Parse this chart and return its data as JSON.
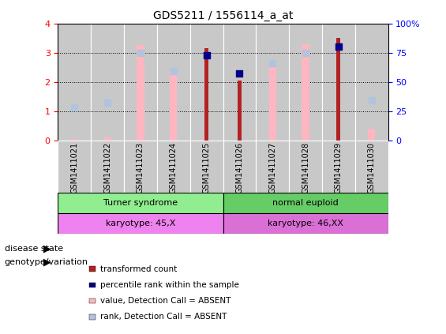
{
  "title": "GDS5211 / 1556114_a_at",
  "samples": [
    "GSM1411021",
    "GSM1411022",
    "GSM1411023",
    "GSM1411024",
    "GSM1411025",
    "GSM1411026",
    "GSM1411027",
    "GSM1411028",
    "GSM1411029",
    "GSM1411030"
  ],
  "transformed_count": [
    null,
    null,
    null,
    null,
    3.15,
    2.05,
    null,
    null,
    3.5,
    null
  ],
  "percentile_rank": [
    null,
    null,
    null,
    null,
    2.9,
    2.28,
    null,
    null,
    3.2,
    null
  ],
  "value_absent": [
    0.05,
    0.1,
    3.25,
    2.35,
    null,
    null,
    2.65,
    3.3,
    null,
    0.4
  ],
  "rank_absent": [
    1.12,
    1.28,
    3.0,
    2.38,
    null,
    null,
    2.65,
    3.0,
    null,
    1.38
  ],
  "ylim": [
    0,
    4
  ],
  "yticks": [
    0,
    1,
    2,
    3,
    4
  ],
  "y2ticks": [
    0,
    25,
    50,
    75,
    100
  ],
  "disease_state_groups": [
    {
      "label": "Turner syndrome",
      "start": 0,
      "end": 5,
      "color": "#90ee90"
    },
    {
      "label": "normal euploid",
      "start": 5,
      "end": 10,
      "color": "#66cc66"
    }
  ],
  "genotype_groups": [
    {
      "label": "karyotype: 45,X",
      "start": 0,
      "end": 5,
      "color": "#ee82ee"
    },
    {
      "label": "karyotype: 46,XX",
      "start": 5,
      "end": 10,
      "color": "#da70d6"
    }
  ],
  "red_color": "#b22222",
  "blue_color": "#00008b",
  "pink_color": "#ffb6c1",
  "lavender_color": "#b0c4de",
  "bg_color": "#c8c8c8",
  "legend_items": [
    {
      "color": "#b22222",
      "label": "transformed count"
    },
    {
      "color": "#00008b",
      "label": "percentile rank within the sample"
    },
    {
      "color": "#ffb6c1",
      "label": "value, Detection Call = ABSENT"
    },
    {
      "color": "#b0c4de",
      "label": "rank, Detection Call = ABSENT"
    }
  ]
}
